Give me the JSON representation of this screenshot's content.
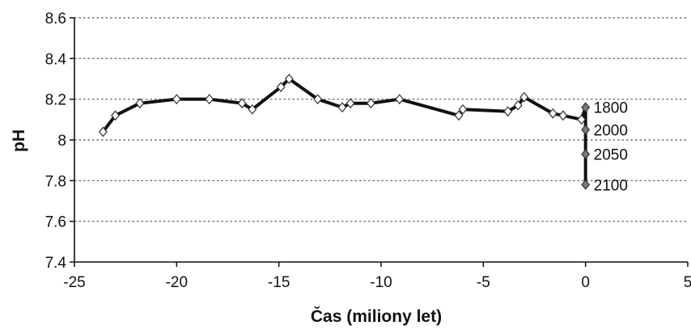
{
  "chart_data": {
    "type": "line",
    "title": "",
    "xlabel": "Čas (miliony let)",
    "ylabel": "pH",
    "xlim": [
      -25,
      5
    ],
    "ylim": [
      7.4,
      8.6
    ],
    "x_ticks": [
      -25,
      -20,
      -15,
      -10,
      -5,
      0,
      5
    ],
    "x_tick_labels": [
      "-25",
      "-20",
      "-15",
      "-10",
      "-5",
      "0",
      "5"
    ],
    "y_ticks": [
      7.4,
      7.6,
      7.8,
      8.0,
      8.2,
      8.4,
      8.6
    ],
    "y_tick_labels": [
      "7.4",
      "7.6",
      "7.8",
      "8",
      "8.2",
      "8.4",
      "8.6"
    ],
    "grid": "horizontal dotted",
    "series": [
      {
        "marker": "diamond-white",
        "color": "#111111",
        "points": [
          [
            -23.6,
            8.04
          ],
          [
            -23.0,
            8.12
          ],
          [
            -21.8,
            8.18
          ],
          [
            -20.0,
            8.2
          ],
          [
            -18.4,
            8.2
          ],
          [
            -16.8,
            8.18
          ],
          [
            -16.3,
            8.15
          ],
          [
            -14.9,
            8.26
          ],
          [
            -14.5,
            8.3
          ],
          [
            -13.1,
            8.2
          ],
          [
            -11.9,
            8.16
          ],
          [
            -11.5,
            8.18
          ],
          [
            -10.5,
            8.18
          ],
          [
            -9.1,
            8.2
          ],
          [
            -6.2,
            8.12
          ],
          [
            -6.0,
            8.15
          ],
          [
            -3.8,
            8.14
          ],
          [
            -3.3,
            8.17
          ],
          [
            -3.0,
            8.21
          ],
          [
            -1.6,
            8.13
          ],
          [
            -1.1,
            8.12
          ],
          [
            -0.2,
            8.1
          ]
        ]
      },
      {
        "marker": "diamond-gray",
        "color": "#111111",
        "points": [
          [
            0.0,
            8.16
          ],
          [
            0.0,
            8.05
          ],
          [
            0.0,
            7.93
          ],
          [
            0.0,
            7.78
          ]
        ],
        "point_labels": [
          "1800",
          "2000",
          "2050",
          "2100"
        ]
      }
    ]
  },
  "colors": {
    "line": "#111111",
    "grid": "#555555",
    "marker_open_fill": "#ffffff",
    "marker_gray_fill": "#7a7a7a"
  }
}
